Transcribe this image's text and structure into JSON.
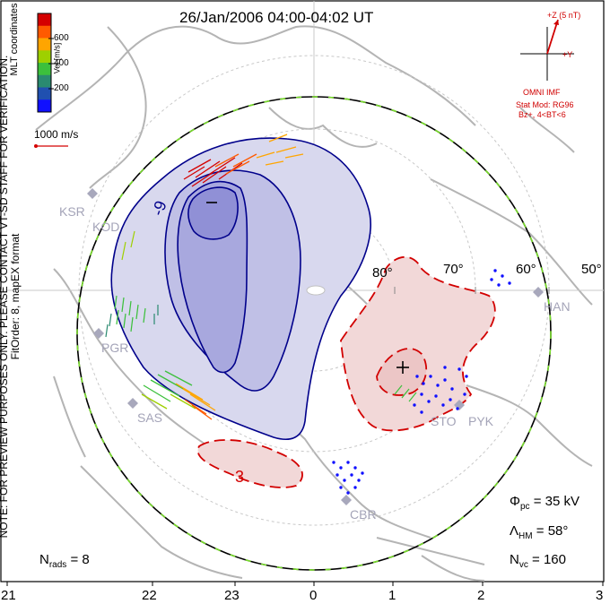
{
  "title": "26/Jan/2006 04:00-04:02 UT",
  "side_note": {
    "line1": "NOTE: FOR PREVIEW PURPOSES ONLY. PLEASE CONTACT VT-SD STAFF FOR VERIFICATION.",
    "line2": "FitOrder: 8, mapEX format"
  },
  "coord_label": "MLT coordinates",
  "colorbar": {
    "label": "Vel [m/s]",
    "ticks": [
      "600",
      "400",
      "200"
    ],
    "colors": [
      "#d40000",
      "#ff5a00",
      "#ffa500",
      "#9ed000",
      "#3cc03c",
      "#2a8a70",
      "#2050b0",
      "#1010ff"
    ]
  },
  "scale_vector": {
    "label": "1000 m/s"
  },
  "imf": {
    "z_label": "+Z (5 nT)",
    "y_label": "+Y",
    "source": "OMNI IMF",
    "model": "Stat Mod: RG96",
    "condition": "Bz+, 4<BT<6"
  },
  "lat_labels": [
    "80°",
    "70°",
    "60°",
    "50°"
  ],
  "stations": [
    "KSR",
    "KOD",
    "PGR",
    "SAS",
    "STO",
    "PYK",
    "HAN",
    "CBR"
  ],
  "potential_labels": [
    "-9",
    "3"
  ],
  "extrema": {
    "min": "–",
    "max": "+"
  },
  "stats": {
    "phi_label": "Φ",
    "phi_sub": "pc",
    "phi_value": "= 35 kV",
    "lambda_label": "Λ",
    "lambda_sub": "HM",
    "lambda_value": "= 58°",
    "nvc_label": "N",
    "nvc_sub": "vc",
    "nvc_value": "= 160"
  },
  "nrads": {
    "label": "N",
    "sub": "rads",
    "value": "= 8"
  },
  "mlt_ticks": [
    "21",
    "22",
    "23",
    "0",
    "1",
    "2",
    "3"
  ]
}
